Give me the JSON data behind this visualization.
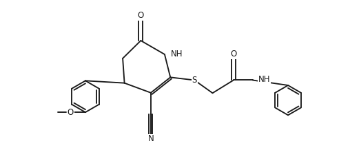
{
  "bg": "#ffffff",
  "lc": "#1a1a1a",
  "lw": 1.35,
  "fs": 8.5,
  "figsize": [
    4.92,
    2.18
  ],
  "dpi": 100,
  "xlim": [
    0.5,
    11.2
  ],
  "ylim": [
    5.2,
    10.4
  ]
}
